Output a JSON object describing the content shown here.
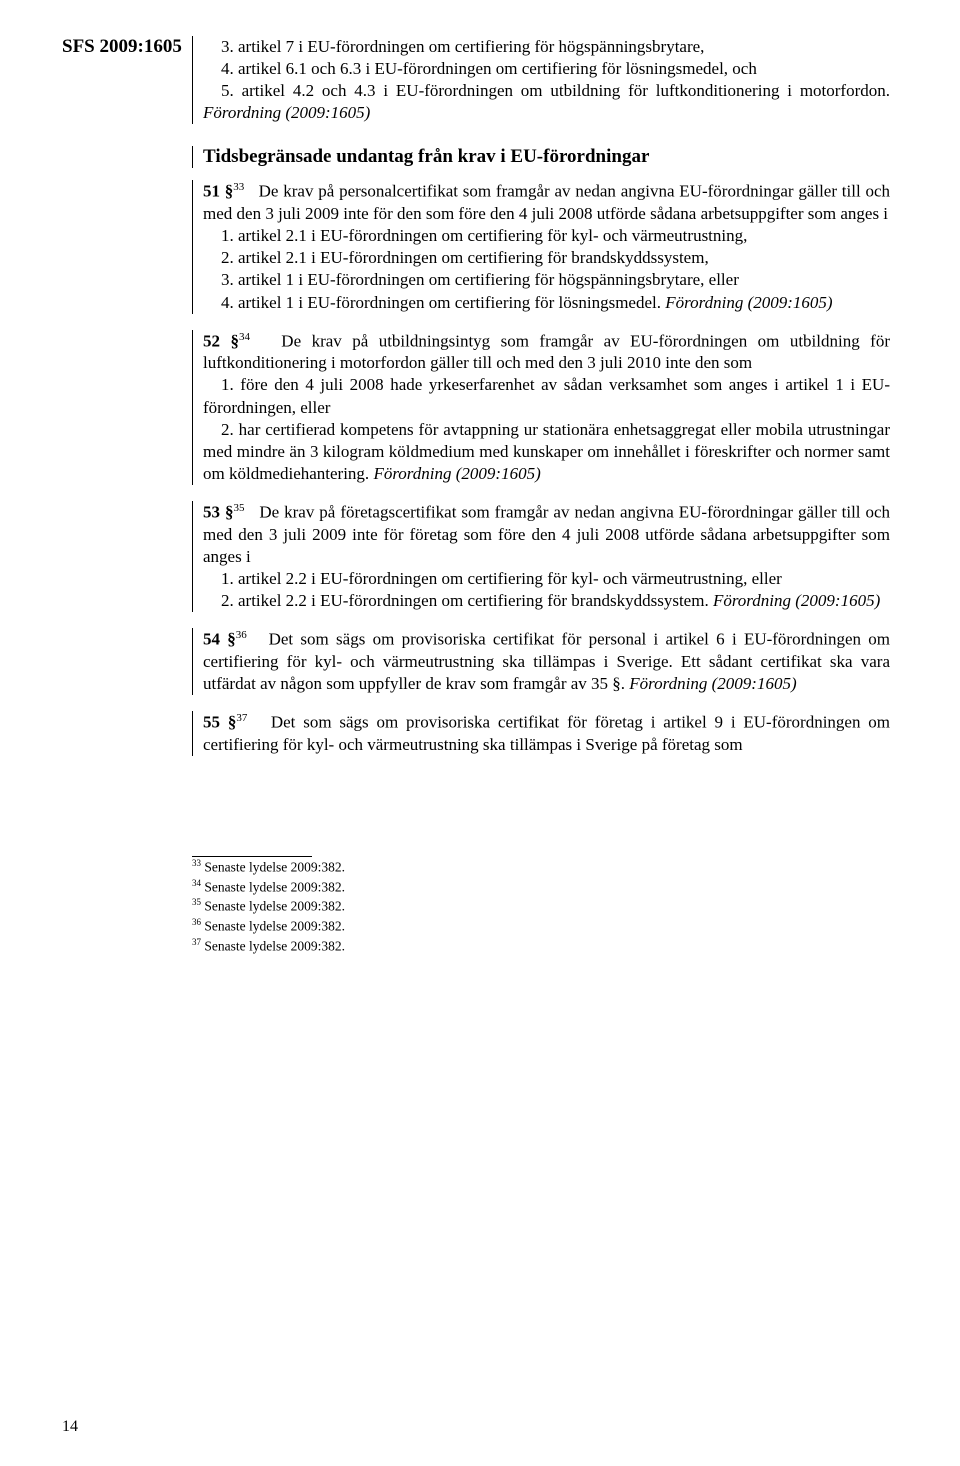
{
  "header": "SFS 2009:1605",
  "page_number": "14",
  "block1": {
    "l1": "3. artikel 7 i EU-förordningen om certifiering för högspänningsbrytare,",
    "l2": "4. artikel 6.1 och 6.3 i EU-förordningen om certifiering för lösningsmedel, och",
    "l3": "5. artikel 4.2 och 4.3 i EU-förordningen om utbildning för luftkonditionering i motorfordon.",
    "ref": "Förordning (2009:1605)"
  },
  "heading1": "Tidsbegränsade undantag från krav i EU-förordningar",
  "block51": {
    "num": "51 §",
    "sup": "33",
    "lead": "De krav på personalcertifikat som framgår av nedan angivna EU-förordningar gäller till och med den 3 juli 2009 inte för den som före den 4 juli 2008 utförde sådana arbetsuppgifter som anges i",
    "i1": "1. artikel 2.1 i EU-förordningen om certifiering för kyl- och värmeutrustning,",
    "i2": "2. artikel 2.1 i EU-förordningen om certifiering för brandskyddssystem,",
    "i3": "3. artikel 1 i EU-förordningen om certifiering för högspänningsbrytare, eller",
    "i4": "4. artikel 1 i EU-förordningen om certifiering för lösningsmedel.",
    "ref": "Förordning (2009:1605)"
  },
  "block52": {
    "num": "52 §",
    "sup": "34",
    "lead": "De krav på utbildningsintyg som framgår av EU-förordningen om utbildning för luftkonditionering i motorfordon gäller till och med den 3 juli 2010 inte den som",
    "i1": "1. före den 4 juli 2008 hade yrkeserfarenhet av sådan verksamhet som anges i artikel 1 i EU-förordningen, eller",
    "i2": "2. har certifierad kompetens för avtappning ur stationära enhetsaggregat eller mobila utrustningar med mindre än 3 kilogram köldmedium med kunskaper om innehållet i föreskrifter och normer samt om köldmediehantering.",
    "ref": "Förordning (2009:1605)"
  },
  "block53": {
    "num": "53 §",
    "sup": "35",
    "lead": "De krav på företagscertifikat som framgår av nedan angivna EU-förordningar gäller till och med den 3 juli 2009 inte för företag som före den 4 juli 2008 utförde sådana arbetsuppgifter som anges i",
    "i1": "1. artikel 2.2 i EU-förordningen om certifiering för kyl- och värmeutrustning, eller",
    "i2": "2. artikel 2.2 i EU-förordningen om certifiering för brandskyddssystem.",
    "ref": "Förordning (2009:1605)"
  },
  "block54": {
    "num": "54 §",
    "sup": "36",
    "lead": "Det som sägs om provisoriska certifikat för personal i artikel 6 i EU-förordningen om certifiering för kyl- och värmeutrustning ska tillämpas i Sverige. Ett sådant certifikat ska vara utfärdat av någon som uppfyller de krav som framgår av 35 §.",
    "ref": "Förordning (2009:1605)"
  },
  "block55": {
    "num": "55 §",
    "sup": "37",
    "lead": "Det som sägs om provisoriska certifikat för företag i artikel 9 i EU-förordningen om certifiering för kyl- och värmeutrustning ska tillämpas i Sverige på företag som"
  },
  "footnotes": {
    "f33": {
      "n": "33",
      "t": " Senaste lydelse 2009:382."
    },
    "f34": {
      "n": "34",
      "t": " Senaste lydelse 2009:382."
    },
    "f35": {
      "n": "35",
      "t": " Senaste lydelse 2009:382."
    },
    "f36": {
      "n": "36",
      "t": " Senaste lydelse 2009:382."
    },
    "f37": {
      "n": "37",
      "t": " Senaste lydelse 2009:382."
    }
  }
}
